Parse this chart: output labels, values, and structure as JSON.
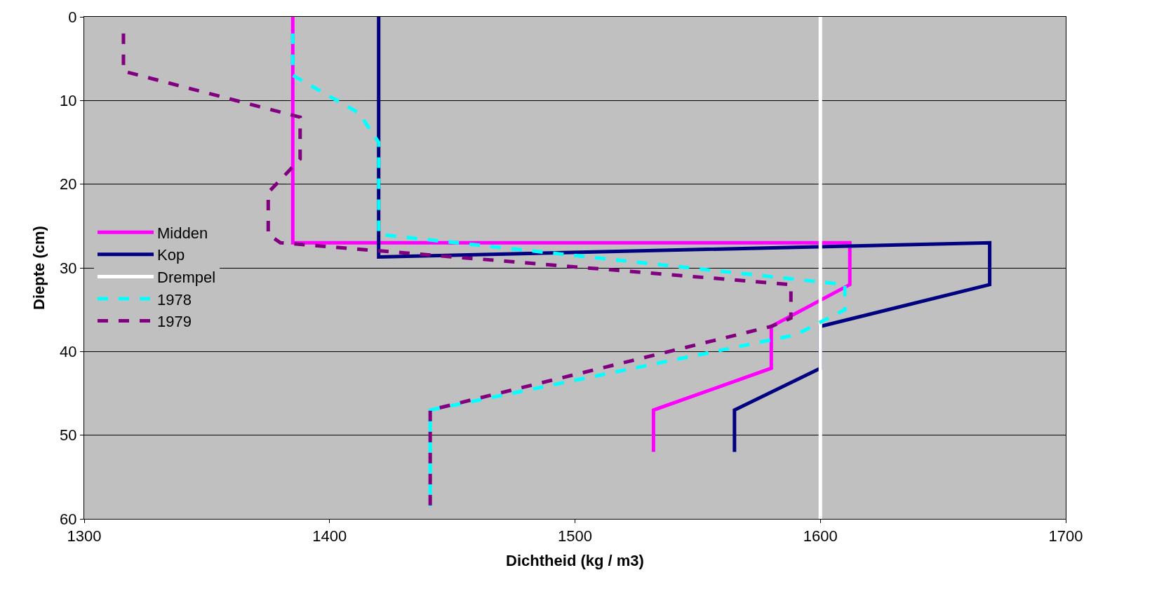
{
  "chart_data": {
    "type": "line",
    "xlabel": "Dichtheid (kg / m3)",
    "ylabel": "Diepte (cm)",
    "xlim": [
      1300,
      1700
    ],
    "xticks": [
      1300,
      1400,
      1500,
      1600,
      1700
    ],
    "ylim": [
      60,
      0
    ],
    "yticks": [
      0,
      10,
      20,
      30,
      40,
      50,
      60
    ],
    "grid": "y",
    "legend": "left",
    "series": [
      {
        "name": "Midden",
        "color": "#ff00ff",
        "line_style": "solid",
        "x": [
          1385,
          1385,
          1612,
          1612,
          1580,
          1580,
          1532,
          1532
        ],
        "values": [
          0,
          27,
          27,
          32,
          37,
          42,
          47,
          52
        ]
      },
      {
        "name": "Kop",
        "color": "#000080",
        "line_style": "solid",
        "x": [
          1420,
          1420,
          1669,
          1669,
          1600,
          1600,
          1565,
          1565
        ],
        "values": [
          0,
          28.7,
          27,
          32,
          37,
          42,
          47,
          52
        ]
      },
      {
        "name": "Drempel",
        "color": "#ffffff",
        "line_style": "solid",
        "x": [
          1600,
          1600
        ],
        "values": [
          0,
          60
        ]
      },
      {
        "name": "1978",
        "color": "#00ffff",
        "line_style": "dashed",
        "x": [
          1385,
          1385,
          1412,
          1420,
          1420,
          1610,
          1610,
          1590,
          1441,
          1441
        ],
        "values": [
          2,
          7,
          11.5,
          15,
          26,
          32,
          35,
          38,
          47,
          58.5
        ]
      },
      {
        "name": "1979",
        "color": "#800080",
        "line_style": "dashed",
        "x": [
          1316,
          1316,
          1388,
          1388,
          1375,
          1375,
          1380,
          1588,
          1588,
          1580,
          1441,
          1441
        ],
        "values": [
          2,
          6.5,
          12,
          17,
          21,
          26,
          27,
          32,
          36,
          37,
          47,
          58.5
        ]
      }
    ]
  }
}
